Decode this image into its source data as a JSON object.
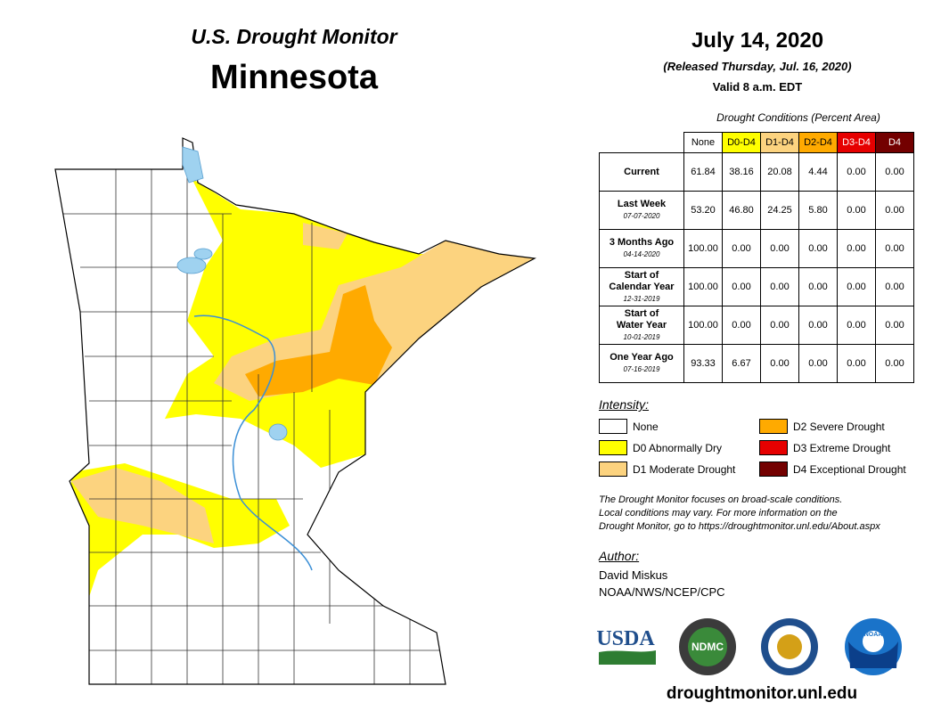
{
  "header": {
    "title": "U.S. Drought Monitor",
    "state": "Minnesota",
    "date": "July 14, 2020",
    "released": "(Released Thursday, Jul. 16, 2020)",
    "valid": "Valid 8 a.m. EDT"
  },
  "table": {
    "caption": "Drought Conditions (Percent Area)",
    "columns": [
      {
        "label": "None",
        "color": "#ffffff",
        "text": "#000000"
      },
      {
        "label": "D0-D4",
        "color": "#ffff00",
        "text": "#000000"
      },
      {
        "label": "D1-D4",
        "color": "#fcd37f",
        "text": "#000000"
      },
      {
        "label": "D2-D4",
        "color": "#ffaa00",
        "text": "#000000"
      },
      {
        "label": "D3-D4",
        "color": "#e60000",
        "text": "#ffffff"
      },
      {
        "label": "D4",
        "color": "#730000",
        "text": "#ffffff"
      }
    ],
    "rows": [
      {
        "label": [
          "Current"
        ],
        "values": [
          "61.84",
          "38.16",
          "20.08",
          "4.44",
          "0.00",
          "0.00"
        ]
      },
      {
        "label": [
          "Last Week"
        ],
        "date": "07-07-2020",
        "values": [
          "53.20",
          "46.80",
          "24.25",
          "5.80",
          "0.00",
          "0.00"
        ]
      },
      {
        "label": [
          "3 Months Ago"
        ],
        "date": "04-14-2020",
        "values": [
          "100.00",
          "0.00",
          "0.00",
          "0.00",
          "0.00",
          "0.00"
        ]
      },
      {
        "label": [
          "Start of",
          "Calendar Year"
        ],
        "date": "12-31-2019",
        "values": [
          "100.00",
          "0.00",
          "0.00",
          "0.00",
          "0.00",
          "0.00"
        ]
      },
      {
        "label": [
          "Start of",
          "Water Year"
        ],
        "date": "10-01-2019",
        "values": [
          "100.00",
          "0.00",
          "0.00",
          "0.00",
          "0.00",
          "0.00"
        ]
      },
      {
        "label": [
          "One Year Ago"
        ],
        "date": "07-16-2019",
        "values": [
          "93.33",
          "6.67",
          "0.00",
          "0.00",
          "0.00",
          "0.00"
        ]
      }
    ]
  },
  "legend": {
    "title": "Intensity:",
    "items": [
      {
        "label": "None",
        "color": "#ffffff"
      },
      {
        "label": "D0 Abnormally Dry",
        "color": "#ffff00"
      },
      {
        "label": "D1 Moderate Drought",
        "color": "#fcd37f"
      },
      {
        "label": "D2 Severe Drought",
        "color": "#ffaa00"
      },
      {
        "label": "D3 Extreme Drought",
        "color": "#e60000"
      },
      {
        "label": "D4 Exceptional Drought",
        "color": "#730000"
      }
    ]
  },
  "note": [
    "The Drought Monitor focuses on broad-scale conditions.",
    "Local conditions may vary. For more information on the",
    "Drought Monitor, go to https://droughtmonitor.unl.edu/About.aspx"
  ],
  "author": {
    "title": "Author:",
    "name": "David Miskus",
    "org": "NOAA/NWS/NCEP/CPC"
  },
  "logos": {
    "usda": "USDA",
    "ndmc": "NDMC",
    "noaa": "NOAA"
  },
  "footer": "droughtmonitor.unl.edu"
}
